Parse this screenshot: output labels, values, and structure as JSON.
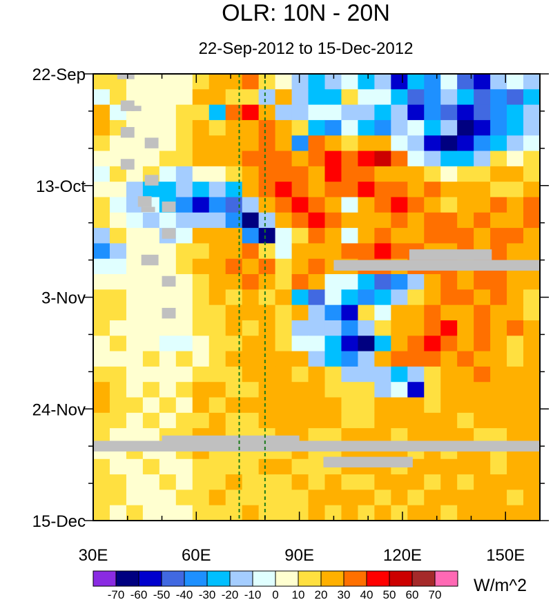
{
  "chart_data": {
    "type": "heatmap",
    "title": "OLR: 10N - 20N",
    "subtitle": "22-Sep-2012 to 15-Dec-2012",
    "x_axis": {
      "range": [
        30,
        160
      ],
      "unit": "degrees east",
      "ticks": [
        30,
        60,
        90,
        120,
        150
      ],
      "tick_labels": [
        "30E",
        "60E",
        "90E",
        "120E",
        "150E"
      ]
    },
    "y_axis": {
      "range_days": [
        0,
        84
      ],
      "reversed": true,
      "ticks": [
        0,
        21,
        42,
        63,
        84
      ],
      "tick_labels": [
        "22-Sep",
        "13-Oct",
        "3-Nov",
        "24-Nov",
        "15-Dec"
      ]
    },
    "reference_lines_lon": [
      72.5,
      80
    ],
    "colorbar": {
      "units": "W/m^2",
      "levels": [
        -70,
        -60,
        -50,
        -40,
        -30,
        -20,
        -10,
        0,
        10,
        20,
        30,
        40,
        50,
        60,
        70
      ],
      "labels": [
        "-70",
        "-60",
        "-50",
        "-40",
        "-30",
        "-20",
        "-10",
        "0",
        "10",
        "20",
        "30",
        "40",
        "50",
        "60",
        "70"
      ],
      "colors": [
        "#8a2be2",
        "#000080",
        "#0000cd",
        "#4169e1",
        "#1e90ff",
        "#00bfff",
        "#a4cdff",
        "#e0ffff",
        "#ffffd0",
        "#ffe040",
        "#ffb000",
        "#ff7000",
        "#ff0000",
        "#cc0000",
        "#a52a2a",
        "#ff69b4"
      ]
    },
    "missing_color": "#c0c0c0",
    "description_grid": {
      "lon_step_deg": 5,
      "time_step_days": 3,
      "rows_note": "values in W/m^2 anomaly classes, rows from 22-Sep (top) to 15-Dec (bottom), columns 30E..160E",
      "values": [
        [
          10,
          10,
          0,
          0,
          5,
          5,
          10,
          25,
          20,
          30,
          15,
          0,
          -20,
          -30,
          -20,
          -10,
          -30,
          -20,
          -60,
          -30,
          -40,
          -10,
          -50,
          -60,
          -20,
          -10,
          -20
        ],
        [
          -10,
          10,
          0,
          0,
          5,
          5,
          20,
          20,
          10,
          10,
          -20,
          20,
          -20,
          -30,
          -30,
          10,
          -10,
          -10,
          -30,
          -50,
          -40,
          -20,
          -30,
          -50,
          -40,
          -50,
          -30
        ],
        [
          20,
          -10,
          0,
          0,
          0,
          10,
          10,
          -30,
          30,
          40,
          20,
          -20,
          -20,
          -10,
          -10,
          -20,
          -20,
          -30,
          -20,
          -60,
          -40,
          -50,
          -60,
          -50,
          -40,
          -30,
          -20
        ],
        [
          20,
          10,
          0,
          0,
          0,
          10,
          20,
          10,
          20,
          20,
          30,
          20,
          10,
          -30,
          -40,
          -10,
          -30,
          -40,
          -20,
          -10,
          -30,
          -20,
          -70,
          -60,
          -40,
          -30,
          -20
        ],
        [
          10,
          0,
          0,
          5,
          5,
          10,
          20,
          20,
          20,
          20,
          30,
          20,
          -40,
          30,
          20,
          10,
          20,
          20,
          -10,
          -20,
          -60,
          -70,
          -60,
          -40,
          -30,
          -20,
          -10
        ],
        [
          0,
          0,
          5,
          5,
          10,
          10,
          20,
          20,
          20,
          30,
          30,
          30,
          20,
          30,
          40,
          30,
          40,
          50,
          30,
          -10,
          -20,
          -30,
          -30,
          -20,
          10,
          0,
          10
        ],
        [
          -10,
          10,
          0,
          10,
          -10,
          -20,
          0,
          0,
          10,
          20,
          30,
          30,
          30,
          20,
          40,
          30,
          30,
          20,
          20,
          20,
          10,
          0,
          10,
          10,
          20,
          20,
          10
        ],
        [
          0,
          0,
          -20,
          -30,
          -30,
          -20,
          -30,
          -20,
          -30,
          20,
          30,
          40,
          30,
          20,
          30,
          30,
          40,
          30,
          30,
          20,
          30,
          20,
          20,
          20,
          10,
          10,
          20
        ],
        [
          10,
          -10,
          -20,
          -10,
          -30,
          -40,
          -60,
          -40,
          -50,
          -20,
          20,
          30,
          40,
          30,
          20,
          -10,
          20,
          30,
          40,
          30,
          20,
          10,
          20,
          20,
          30,
          20,
          30
        ],
        [
          10,
          0,
          -10,
          -20,
          -10,
          -20,
          -20,
          -20,
          -40,
          -70,
          -20,
          20,
          30,
          40,
          30,
          20,
          20,
          20,
          30,
          20,
          30,
          30,
          20,
          30,
          20,
          20,
          30
        ],
        [
          -20,
          10,
          0,
          0,
          -20,
          -10,
          20,
          20,
          20,
          -40,
          -70,
          -10,
          10,
          30,
          20,
          -10,
          20,
          30,
          20,
          20,
          30,
          30,
          30,
          20,
          30,
          30,
          20
        ],
        [
          -40,
          -20,
          0,
          0,
          0,
          10,
          10,
          20,
          20,
          30,
          10,
          -10,
          20,
          20,
          20,
          30,
          30,
          40,
          30,
          30,
          20,
          20,
          30,
          20,
          30,
          20,
          20
        ],
        [
          -10,
          -10,
          0,
          0,
          5,
          10,
          20,
          20,
          30,
          20,
          30,
          10,
          20,
          30,
          20,
          20,
          30,
          30,
          20,
          30,
          30,
          30,
          20,
          30,
          30,
          20,
          20
        ],
        [
          0,
          0,
          0,
          0,
          5,
          5,
          10,
          20,
          20,
          30,
          20,
          10,
          30,
          20,
          -10,
          -10,
          -30,
          -50,
          -40,
          -20,
          20,
          30,
          20,
          30,
          30,
          20,
          20
        ],
        [
          10,
          10,
          0,
          0,
          0,
          0,
          10,
          20,
          10,
          20,
          10,
          20,
          -30,
          -50,
          -10,
          -30,
          -40,
          -30,
          -20,
          10,
          20,
          30,
          30,
          20,
          30,
          20,
          10
        ],
        [
          10,
          10,
          0,
          0,
          0,
          0,
          10,
          10,
          20,
          20,
          20,
          10,
          20,
          -20,
          -40,
          -60,
          10,
          -10,
          20,
          20,
          30,
          20,
          20,
          30,
          20,
          20,
          10
        ],
        [
          10,
          0,
          0,
          0,
          0,
          0,
          10,
          10,
          20,
          10,
          20,
          10,
          -20,
          -20,
          -20,
          -40,
          -20,
          10,
          20,
          20,
          30,
          40,
          20,
          30,
          20,
          30,
          20
        ],
        [
          0,
          10,
          0,
          0,
          -10,
          -10,
          0,
          10,
          10,
          20,
          20,
          10,
          -10,
          -10,
          -30,
          -60,
          -70,
          -30,
          20,
          30,
          40,
          30,
          20,
          30,
          20,
          10,
          20
        ],
        [
          0,
          0,
          0,
          10,
          0,
          10,
          0,
          10,
          20,
          20,
          20,
          20,
          20,
          -20,
          -30,
          -40,
          -20,
          20,
          30,
          30,
          30,
          20,
          30,
          20,
          20,
          10,
          20
        ],
        [
          10,
          10,
          0,
          0,
          0,
          0,
          10,
          10,
          10,
          20,
          20,
          20,
          10,
          20,
          10,
          -20,
          -20,
          -20,
          -30,
          -20,
          10,
          20,
          20,
          30,
          20,
          20,
          20
        ],
        [
          20,
          10,
          0,
          10,
          0,
          10,
          20,
          20,
          10,
          10,
          20,
          20,
          20,
          20,
          10,
          10,
          10,
          -20,
          -10,
          -60,
          10,
          20,
          20,
          20,
          20,
          20,
          20
        ],
        [
          20,
          10,
          10,
          0,
          10,
          0,
          20,
          10,
          20,
          20,
          20,
          20,
          20,
          20,
          20,
          10,
          10,
          20,
          20,
          20,
          10,
          20,
          20,
          20,
          20,
          20,
          20
        ],
        [
          10,
          10,
          0,
          10,
          0,
          10,
          10,
          20,
          10,
          10,
          20,
          20,
          20,
          20,
          20,
          10,
          10,
          20,
          20,
          20,
          20,
          20,
          10,
          20,
          20,
          20,
          20
        ],
        [
          10,
          0,
          0,
          0,
          10,
          10,
          20,
          20,
          10,
          10,
          10,
          20,
          20,
          10,
          10,
          20,
          20,
          20,
          10,
          20,
          20,
          20,
          20,
          10,
          10,
          20,
          20
        ],
        [
          0,
          0,
          10,
          0,
          0,
          10,
          20,
          10,
          10,
          10,
          10,
          10,
          20,
          10,
          10,
          20,
          20,
          20,
          20,
          10,
          20,
          10,
          20,
          20,
          10,
          20,
          20
        ],
        [
          10,
          0,
          0,
          10,
          0,
          0,
          10,
          10,
          10,
          10,
          20,
          20,
          10,
          10,
          10,
          20,
          20,
          20,
          10,
          20,
          20,
          20,
          20,
          20,
          10,
          20,
          20
        ],
        [
          10,
          10,
          0,
          0,
          10,
          0,
          10,
          10,
          20,
          10,
          10,
          10,
          20,
          10,
          20,
          10,
          10,
          20,
          20,
          20,
          10,
          20,
          10,
          20,
          20,
          20,
          20
        ],
        [
          10,
          10,
          0,
          0,
          0,
          10,
          10,
          20,
          10,
          10,
          10,
          10,
          10,
          20,
          20,
          20,
          20,
          10,
          20,
          10,
          20,
          20,
          20,
          20,
          20,
          10,
          20
        ],
        [
          10,
          0,
          10,
          0,
          0,
          0,
          10,
          10,
          10,
          20,
          10,
          10,
          10,
          20,
          10,
          20,
          10,
          20,
          10,
          20,
          20,
          10,
          20,
          20,
          20,
          20,
          20
        ]
      ]
    },
    "missing_segments": [
      {
        "lon": [
          37,
          42
        ],
        "day": [
          0,
          1
        ]
      },
      {
        "lon": [
          38,
          42
        ],
        "day": [
          5,
          7
        ]
      },
      {
        "lon": [
          41,
          44
        ],
        "day": [
          6,
          7
        ]
      },
      {
        "lon": [
          38,
          42
        ],
        "day": [
          10,
          12
        ]
      },
      {
        "lon": [
          45,
          49
        ],
        "day": [
          12,
          14
        ]
      },
      {
        "lon": [
          38,
          42
        ],
        "day": [
          16,
          18
        ]
      },
      {
        "lon": [
          45,
          49
        ],
        "day": [
          19,
          21
        ]
      },
      {
        "lon": [
          43,
          47
        ],
        "day": [
          23,
          25
        ]
      },
      {
        "lon": [
          44,
          48
        ],
        "day": [
          25,
          26
        ]
      },
      {
        "lon": [
          50,
          54
        ],
        "day": [
          24,
          26
        ]
      },
      {
        "lon": [
          50,
          54
        ],
        "day": [
          29,
          31
        ]
      },
      {
        "lon": [
          44,
          49
        ],
        "day": [
          34,
          36
        ]
      },
      {
        "lon": [
          50,
          54
        ],
        "day": [
          38,
          40
        ]
      },
      {
        "lon": [
          50,
          54
        ],
        "day": [
          44,
          46
        ]
      },
      {
        "lon": [
          100,
          160
        ],
        "day": [
          35,
          37
        ]
      },
      {
        "lon": [
          122,
          146
        ],
        "day": [
          33,
          35
        ]
      },
      {
        "lon": [
          30,
          160
        ],
        "day": [
          69,
          71
        ]
      },
      {
        "lon": [
          50,
          90
        ],
        "day": [
          68,
          70
        ]
      },
      {
        "lon": [
          97,
          123
        ],
        "day": [
          72,
          74
        ]
      }
    ]
  }
}
